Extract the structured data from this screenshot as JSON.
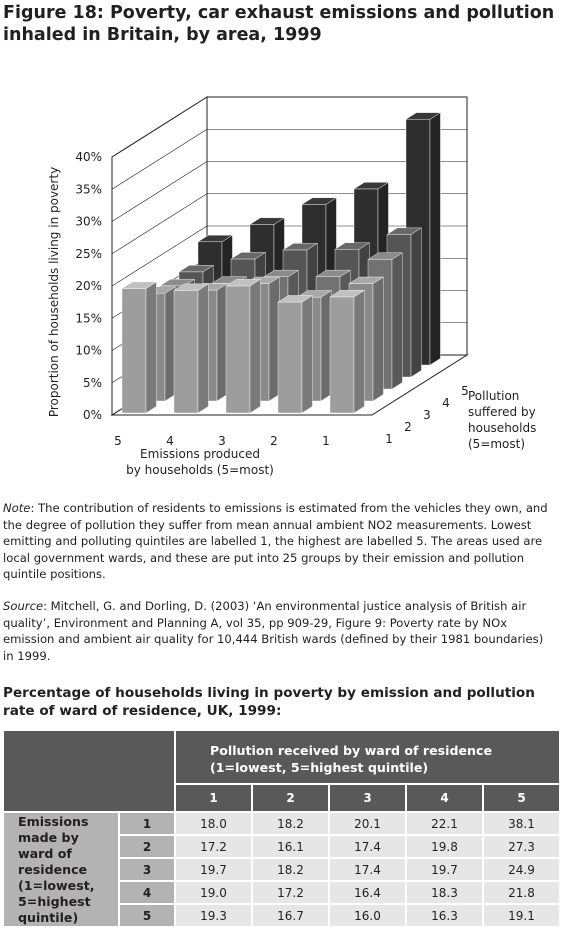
{
  "figure": {
    "label": "Figure 18:",
    "title": "Poverty, car exhaust emissions and pollution inhaled in Britain, by area, 1999"
  },
  "chart_data": {
    "type": "bar",
    "variant": "3d-grouped",
    "ylabel": "Proportion of households living in poverty",
    "xlabel": "Emissions produced by households (5=most)",
    "zlabel": "Pollution suffered by households (5=most)",
    "y_ticks": [
      "0%",
      "5%",
      "10%",
      "15%",
      "20%",
      "25%",
      "30%",
      "35%",
      "40%"
    ],
    "ylim": [
      0,
      40
    ],
    "x_categories": [
      "5",
      "4",
      "3",
      "2",
      "1"
    ],
    "z_categories": [
      "1",
      "2",
      "3",
      "4",
      "5"
    ],
    "series": [
      {
        "name": "1",
        "color": "#9d9d9d",
        "values": [
          19.3,
          19.0,
          19.7,
          17.2,
          18.0
        ]
      },
      {
        "name": "2",
        "color": "#8a8a8a",
        "values": [
          16.7,
          17.2,
          18.2,
          16.1,
          18.2
        ]
      },
      {
        "name": "3",
        "color": "#727272",
        "values": [
          16.0,
          16.4,
          17.4,
          17.4,
          20.1
        ]
      },
      {
        "name": "4",
        "color": "#555555",
        "values": [
          16.3,
          18.3,
          19.7,
          19.8,
          22.1
        ]
      },
      {
        "name": "5",
        "color": "#2e2e2e",
        "values": [
          19.1,
          21.8,
          24.9,
          27.3,
          38.1
        ]
      }
    ]
  },
  "note": {
    "label": "Note",
    "text": ": The contribution of residents to emissions is estimated from the vehicles they own, and the degree of pollution they suffer from mean annual ambient NO2 measurements. Lowest emitting and polluting quintiles are labelled 1, the highest are labelled 5. The areas used are local government wards, and these are put into 25 groups by their emission and pollution quintile positions."
  },
  "source": {
    "label": "Source",
    "text": ": Mitchell, G. and Dorling, D. (2003) ‘An environmental justice analysis of British air quality’, Environment and Planning A, vol 35, pp 909-29, Figure 9: Poverty rate by NOx emission and ambient air quality for 10,444 British wards (defined by their 1981 boundaries) in 1999."
  },
  "table": {
    "title": "Percentage of households living in poverty by emission and pollution rate of ward of residence, UK, 1999:",
    "col_header": "Pollution received by ward of residence (1=lowest, 5=highest quintile)",
    "row_header": "Emissions made by ward of residence (1=lowest, 5=highest quintile)",
    "columns": [
      "1",
      "2",
      "3",
      "4",
      "5"
    ],
    "rows": [
      {
        "label": "1",
        "values": [
          "18.0",
          "18.2",
          "20.1",
          "22.1",
          "38.1"
        ]
      },
      {
        "label": "2",
        "values": [
          "17.2",
          "16.1",
          "17.4",
          "19.8",
          "27.3"
        ]
      },
      {
        "label": "3",
        "values": [
          "19.7",
          "18.2",
          "17.4",
          "19.7",
          "24.9"
        ]
      },
      {
        "label": "4",
        "values": [
          "19.0",
          "17.2",
          "16.4",
          "18.3",
          "21.8"
        ]
      },
      {
        "label": "5",
        "values": [
          "19.3",
          "16.7",
          "16.0",
          "16.3",
          "19.1"
        ]
      }
    ]
  }
}
